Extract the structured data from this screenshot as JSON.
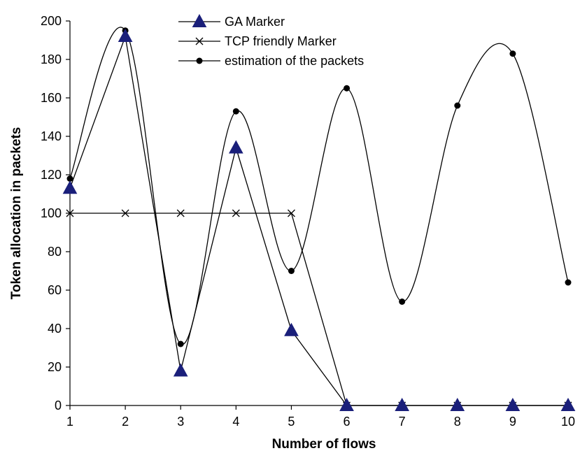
{
  "chart_data": {
    "type": "line",
    "xlabel": "Number of flows",
    "ylabel": "Token allocation in packets",
    "x": [
      1,
      2,
      3,
      4,
      5,
      6,
      7,
      8,
      9,
      10
    ],
    "ylim": [
      0,
      200
    ],
    "yticks": [
      0,
      20,
      40,
      60,
      80,
      100,
      120,
      140,
      160,
      180,
      200
    ],
    "grid": false,
    "legend_position": "top-center",
    "series": [
      {
        "name": "GA Marker",
        "marker": "triangle",
        "line": "straight",
        "color": "#1a1f7a",
        "x": [
          1,
          2,
          3,
          4,
          5,
          6,
          7,
          8,
          9,
          10
        ],
        "values": [
          113,
          192,
          18,
          134,
          39,
          0,
          0,
          0,
          0,
          0
        ]
      },
      {
        "name": "TCP friendly Marker",
        "marker": "x",
        "line": "straight",
        "color": "#000000",
        "x": [
          1,
          2,
          3,
          4,
          5,
          6,
          7,
          8,
          9,
          10
        ],
        "values": [
          100,
          100,
          100,
          100,
          100,
          0,
          0,
          0,
          0,
          0
        ]
      },
      {
        "name": "estimation of the packets",
        "marker": "circle",
        "line": "smooth",
        "color": "#000000",
        "x": [
          1,
          2,
          3,
          4,
          5,
          6,
          7,
          8,
          9,
          10
        ],
        "values": [
          118,
          195,
          32,
          153,
          70,
          165,
          54,
          156,
          183,
          64
        ]
      }
    ]
  }
}
